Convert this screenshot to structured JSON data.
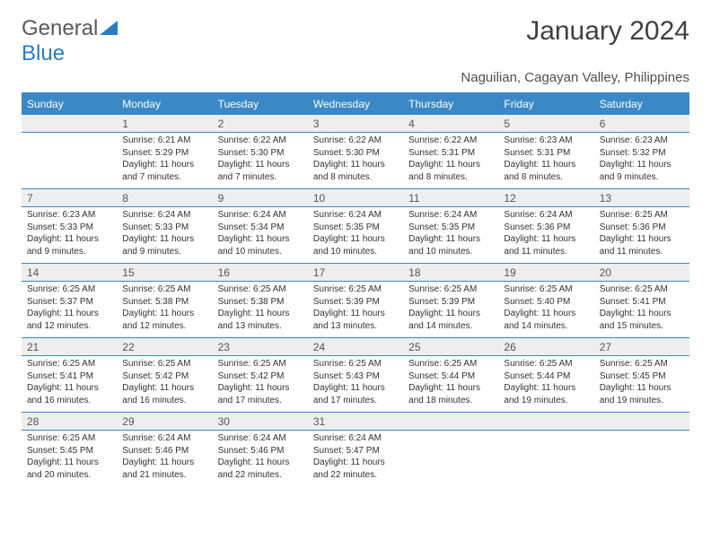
{
  "branding": {
    "text_general": "General",
    "text_blue": "Blue"
  },
  "header": {
    "title": "January 2024",
    "subtitle": "Naguilian, Cagayan Valley, Philippines"
  },
  "calendar": {
    "type": "table",
    "colors": {
      "header_bg": "#3a88c6",
      "header_text": "#ffffff",
      "daynum_bg": "#eeeeee",
      "border": "#3a88c6",
      "text": "#333333"
    },
    "day_names": [
      "Sunday",
      "Monday",
      "Tuesday",
      "Wednesday",
      "Thursday",
      "Friday",
      "Saturday"
    ],
    "weeks": [
      [
        {
          "num": "",
          "sunrise": "",
          "sunset": "",
          "daylight": ""
        },
        {
          "num": "1",
          "sunrise": "Sunrise: 6:21 AM",
          "sunset": "Sunset: 5:29 PM",
          "daylight": "Daylight: 11 hours and 7 minutes."
        },
        {
          "num": "2",
          "sunrise": "Sunrise: 6:22 AM",
          "sunset": "Sunset: 5:30 PM",
          "daylight": "Daylight: 11 hours and 7 minutes."
        },
        {
          "num": "3",
          "sunrise": "Sunrise: 6:22 AM",
          "sunset": "Sunset: 5:30 PM",
          "daylight": "Daylight: 11 hours and 8 minutes."
        },
        {
          "num": "4",
          "sunrise": "Sunrise: 6:22 AM",
          "sunset": "Sunset: 5:31 PM",
          "daylight": "Daylight: 11 hours and 8 minutes."
        },
        {
          "num": "5",
          "sunrise": "Sunrise: 6:23 AM",
          "sunset": "Sunset: 5:31 PM",
          "daylight": "Daylight: 11 hours and 8 minutes."
        },
        {
          "num": "6",
          "sunrise": "Sunrise: 6:23 AM",
          "sunset": "Sunset: 5:32 PM",
          "daylight": "Daylight: 11 hours and 9 minutes."
        }
      ],
      [
        {
          "num": "7",
          "sunrise": "Sunrise: 6:23 AM",
          "sunset": "Sunset: 5:33 PM",
          "daylight": "Daylight: 11 hours and 9 minutes."
        },
        {
          "num": "8",
          "sunrise": "Sunrise: 6:24 AM",
          "sunset": "Sunset: 5:33 PM",
          "daylight": "Daylight: 11 hours and 9 minutes."
        },
        {
          "num": "9",
          "sunrise": "Sunrise: 6:24 AM",
          "sunset": "Sunset: 5:34 PM",
          "daylight": "Daylight: 11 hours and 10 minutes."
        },
        {
          "num": "10",
          "sunrise": "Sunrise: 6:24 AM",
          "sunset": "Sunset: 5:35 PM",
          "daylight": "Daylight: 11 hours and 10 minutes."
        },
        {
          "num": "11",
          "sunrise": "Sunrise: 6:24 AM",
          "sunset": "Sunset: 5:35 PM",
          "daylight": "Daylight: 11 hours and 10 minutes."
        },
        {
          "num": "12",
          "sunrise": "Sunrise: 6:24 AM",
          "sunset": "Sunset: 5:36 PM",
          "daylight": "Daylight: 11 hours and 11 minutes."
        },
        {
          "num": "13",
          "sunrise": "Sunrise: 6:25 AM",
          "sunset": "Sunset: 5:36 PM",
          "daylight": "Daylight: 11 hours and 11 minutes."
        }
      ],
      [
        {
          "num": "14",
          "sunrise": "Sunrise: 6:25 AM",
          "sunset": "Sunset: 5:37 PM",
          "daylight": "Daylight: 11 hours and 12 minutes."
        },
        {
          "num": "15",
          "sunrise": "Sunrise: 6:25 AM",
          "sunset": "Sunset: 5:38 PM",
          "daylight": "Daylight: 11 hours and 12 minutes."
        },
        {
          "num": "16",
          "sunrise": "Sunrise: 6:25 AM",
          "sunset": "Sunset: 5:38 PM",
          "daylight": "Daylight: 11 hours and 13 minutes."
        },
        {
          "num": "17",
          "sunrise": "Sunrise: 6:25 AM",
          "sunset": "Sunset: 5:39 PM",
          "daylight": "Daylight: 11 hours and 13 minutes."
        },
        {
          "num": "18",
          "sunrise": "Sunrise: 6:25 AM",
          "sunset": "Sunset: 5:39 PM",
          "daylight": "Daylight: 11 hours and 14 minutes."
        },
        {
          "num": "19",
          "sunrise": "Sunrise: 6:25 AM",
          "sunset": "Sunset: 5:40 PM",
          "daylight": "Daylight: 11 hours and 14 minutes."
        },
        {
          "num": "20",
          "sunrise": "Sunrise: 6:25 AM",
          "sunset": "Sunset: 5:41 PM",
          "daylight": "Daylight: 11 hours and 15 minutes."
        }
      ],
      [
        {
          "num": "21",
          "sunrise": "Sunrise: 6:25 AM",
          "sunset": "Sunset: 5:41 PM",
          "daylight": "Daylight: 11 hours and 16 minutes."
        },
        {
          "num": "22",
          "sunrise": "Sunrise: 6:25 AM",
          "sunset": "Sunset: 5:42 PM",
          "daylight": "Daylight: 11 hours and 16 minutes."
        },
        {
          "num": "23",
          "sunrise": "Sunrise: 6:25 AM",
          "sunset": "Sunset: 5:42 PM",
          "daylight": "Daylight: 11 hours and 17 minutes."
        },
        {
          "num": "24",
          "sunrise": "Sunrise: 6:25 AM",
          "sunset": "Sunset: 5:43 PM",
          "daylight": "Daylight: 11 hours and 17 minutes."
        },
        {
          "num": "25",
          "sunrise": "Sunrise: 6:25 AM",
          "sunset": "Sunset: 5:44 PM",
          "daylight": "Daylight: 11 hours and 18 minutes."
        },
        {
          "num": "26",
          "sunrise": "Sunrise: 6:25 AM",
          "sunset": "Sunset: 5:44 PM",
          "daylight": "Daylight: 11 hours and 19 minutes."
        },
        {
          "num": "27",
          "sunrise": "Sunrise: 6:25 AM",
          "sunset": "Sunset: 5:45 PM",
          "daylight": "Daylight: 11 hours and 19 minutes."
        }
      ],
      [
        {
          "num": "28",
          "sunrise": "Sunrise: 6:25 AM",
          "sunset": "Sunset: 5:45 PM",
          "daylight": "Daylight: 11 hours and 20 minutes."
        },
        {
          "num": "29",
          "sunrise": "Sunrise: 6:24 AM",
          "sunset": "Sunset: 5:46 PM",
          "daylight": "Daylight: 11 hours and 21 minutes."
        },
        {
          "num": "30",
          "sunrise": "Sunrise: 6:24 AM",
          "sunset": "Sunset: 5:46 PM",
          "daylight": "Daylight: 11 hours and 22 minutes."
        },
        {
          "num": "31",
          "sunrise": "Sunrise: 6:24 AM",
          "sunset": "Sunset: 5:47 PM",
          "daylight": "Daylight: 11 hours and 22 minutes."
        },
        {
          "num": "",
          "sunrise": "",
          "sunset": "",
          "daylight": ""
        },
        {
          "num": "",
          "sunrise": "",
          "sunset": "",
          "daylight": ""
        },
        {
          "num": "",
          "sunrise": "",
          "sunset": "",
          "daylight": ""
        }
      ]
    ]
  }
}
